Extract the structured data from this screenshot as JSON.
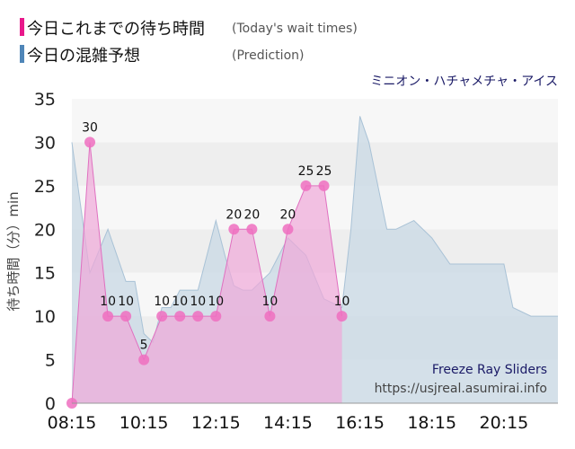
{
  "legend": [
    {
      "label": "今日これまでの待ち時間",
      "sub": "(Today's wait times)",
      "color": "#e8198b"
    },
    {
      "label": "今日の混雑予想",
      "sub": "(Prediction)",
      "color": "#4f86b8"
    }
  ],
  "ride_name": "ミニオン・ハチャメチャ・アイス",
  "watermark": {
    "line1": "Freeze Ray Sliders",
    "line2": "https://usjreal.asumirai.info"
  },
  "colors": {
    "actual_fill": "#f0a8d8",
    "actual_line": "#e070c0",
    "actual_marker": "#ee6fc0",
    "pred_fill": "#c8d8e4",
    "pred_line": "#a9c2d6",
    "band_light": "#f7f7f7",
    "band_dark": "#eeeeee"
  },
  "chart_data": {
    "type": "area",
    "title": "ミニオン・ハチャメチャ・アイス",
    "ylabel": "待ち時間（分）min",
    "xlabel": "",
    "ylim": [
      0,
      35
    ],
    "yticks": [
      0,
      5,
      10,
      15,
      20,
      25,
      30,
      35
    ],
    "xlim": [
      "08:15",
      "21:45"
    ],
    "xtick_labels": [
      "08:15",
      "10:15",
      "12:15",
      "14:15",
      "16:15",
      "18:15",
      "20:15"
    ],
    "xtick_values": [
      "08:15",
      "10:15",
      "12:15",
      "14:15",
      "16:15",
      "18:15",
      "20:15"
    ],
    "series": [
      {
        "name": "今日これまでの待ち時間",
        "x": [
          "08:15",
          "08:45",
          "09:15",
          "09:45",
          "10:15",
          "10:45",
          "11:15",
          "11:45",
          "12:15",
          "12:45",
          "13:15",
          "13:45",
          "14:15",
          "14:45",
          "15:15",
          "15:45"
        ],
        "values": [
          0,
          30,
          10,
          10,
          5,
          10,
          10,
          10,
          10,
          20,
          20,
          10,
          20,
          25,
          25,
          10
        ]
      },
      {
        "name": "今日の混雑予想",
        "x": [
          "08:15",
          "08:45",
          "09:15",
          "09:45",
          "10:00",
          "10:15",
          "10:30",
          "10:45",
          "11:00",
          "11:15",
          "11:45",
          "12:15",
          "12:30",
          "12:45",
          "13:00",
          "13:15",
          "13:45",
          "14:15",
          "14:45",
          "15:15",
          "15:45",
          "16:00",
          "16:15",
          "16:30",
          "17:00",
          "17:15",
          "17:45",
          "18:15",
          "18:45",
          "19:15",
          "19:45",
          "20:15",
          "20:30",
          "21:00",
          "21:15",
          "21:45"
        ],
        "values": [
          30,
          15,
          20,
          14,
          14,
          8,
          7,
          11,
          11,
          13,
          13,
          21,
          17,
          13.5,
          13,
          13,
          15,
          19,
          17,
          12,
          11,
          20,
          33,
          30,
          20,
          20,
          21,
          19,
          16,
          16,
          16,
          16,
          11,
          10,
          10,
          10
        ]
      }
    ]
  }
}
